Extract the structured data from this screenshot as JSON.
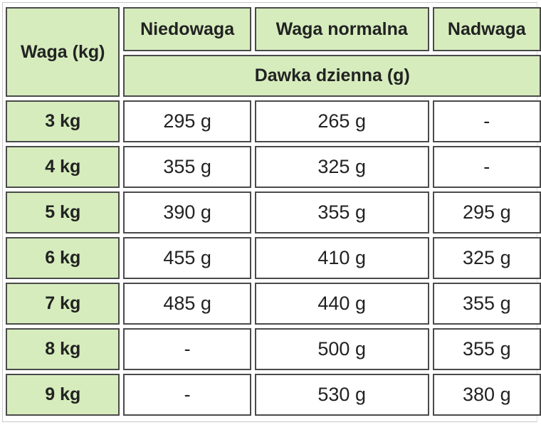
{
  "header": {
    "weight_col": "Waga (kg)",
    "columns": [
      "Niedowaga",
      "Waga normalna",
      "Nadwaga"
    ],
    "subheader": "Dawka dzienna (g)"
  },
  "rows": [
    {
      "weight": "3 kg",
      "values": [
        "295 g",
        "265 g",
        "-"
      ]
    },
    {
      "weight": "4 kg",
      "values": [
        "355 g",
        "325 g",
        "-"
      ]
    },
    {
      "weight": "5 kg",
      "values": [
        "390 g",
        "355 g",
        "295 g"
      ]
    },
    {
      "weight": "6 kg",
      "values": [
        "455 g",
        "410 g",
        "325 g"
      ]
    },
    {
      "weight": "7 kg",
      "values": [
        "485 g",
        "440 g",
        "355 g"
      ]
    },
    {
      "weight": "8 kg",
      "values": [
        "-",
        "500 g",
        "355 g"
      ]
    },
    {
      "weight": "9 kg",
      "values": [
        "-",
        "530 g",
        "380 g"
      ]
    }
  ],
  "colors": {
    "header_bg": "#d6ecbd",
    "border": "#4a4a4a"
  }
}
